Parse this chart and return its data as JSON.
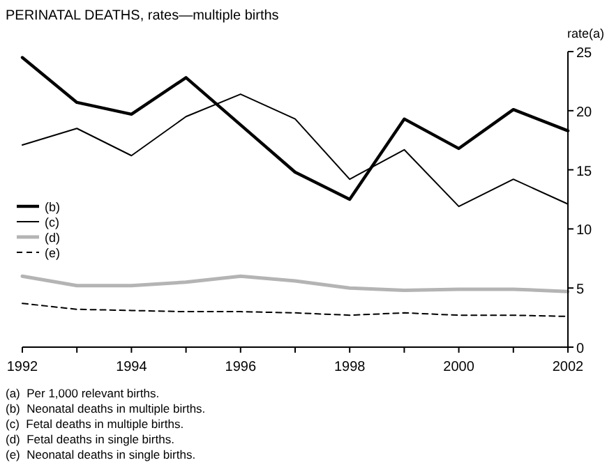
{
  "chart_data": {
    "type": "line",
    "title": "PERINATAL DEATHS, rates—multiple births",
    "ylabel": "rate(a)",
    "x": [
      1992,
      1993,
      1994,
      1995,
      1996,
      1997,
      1998,
      1999,
      2000,
      2001,
      2002
    ],
    "xlim": [
      1992,
      2002
    ],
    "xticks": [
      1992,
      {
        "value": 1993,
        "label": null
      },
      1994,
      {
        "value": 1995,
        "label": null
      },
      1996,
      {
        "value": 1997,
        "label": null
      },
      1998,
      {
        "value": 1999,
        "label": null
      },
      2000,
      {
        "value": 2001,
        "label": null
      },
      2002
    ],
    "ylim": [
      0,
      25
    ],
    "yticks": [
      0,
      5,
      10,
      15,
      20,
      25
    ],
    "series": [
      {
        "name": "(b)",
        "color": "#000000",
        "line_style": "solid",
        "values": [
          24.5,
          20.7,
          19.7,
          22.8,
          18.8,
          14.8,
          12.5,
          19.3,
          16.8,
          20.1,
          18.3
        ]
      },
      {
        "name": "(c)",
        "color": "#000000",
        "line_style": "solid",
        "values": [
          17.1,
          18.5,
          16.2,
          19.5,
          21.4,
          19.3,
          14.2,
          16.7,
          11.9,
          14.2,
          12.1
        ]
      },
      {
        "name": "(d)",
        "color": "#b4b4b4",
        "line_style": "solid",
        "values": [
          6.0,
          5.2,
          5.2,
          5.5,
          6.0,
          5.6,
          5.0,
          4.8,
          4.9,
          4.9,
          4.7
        ]
      },
      {
        "name": "(e)",
        "color": "#000000",
        "line_style": "dashed",
        "values": [
          3.7,
          3.2,
          3.1,
          3.0,
          3.0,
          2.9,
          2.7,
          2.9,
          2.7,
          2.7,
          2.6
        ]
      }
    ],
    "legend": "left",
    "marker": "none",
    "grid": false,
    "annotations": [
      "(a)  Per 1,000 relevant births.",
      "(b)  Neonatal deaths in multiple births.",
      "(c)  Fetal deaths in multiple births.",
      "(d)  Fetal deaths in single births.",
      "(e)  Neonatal deaths in single births."
    ]
  }
}
